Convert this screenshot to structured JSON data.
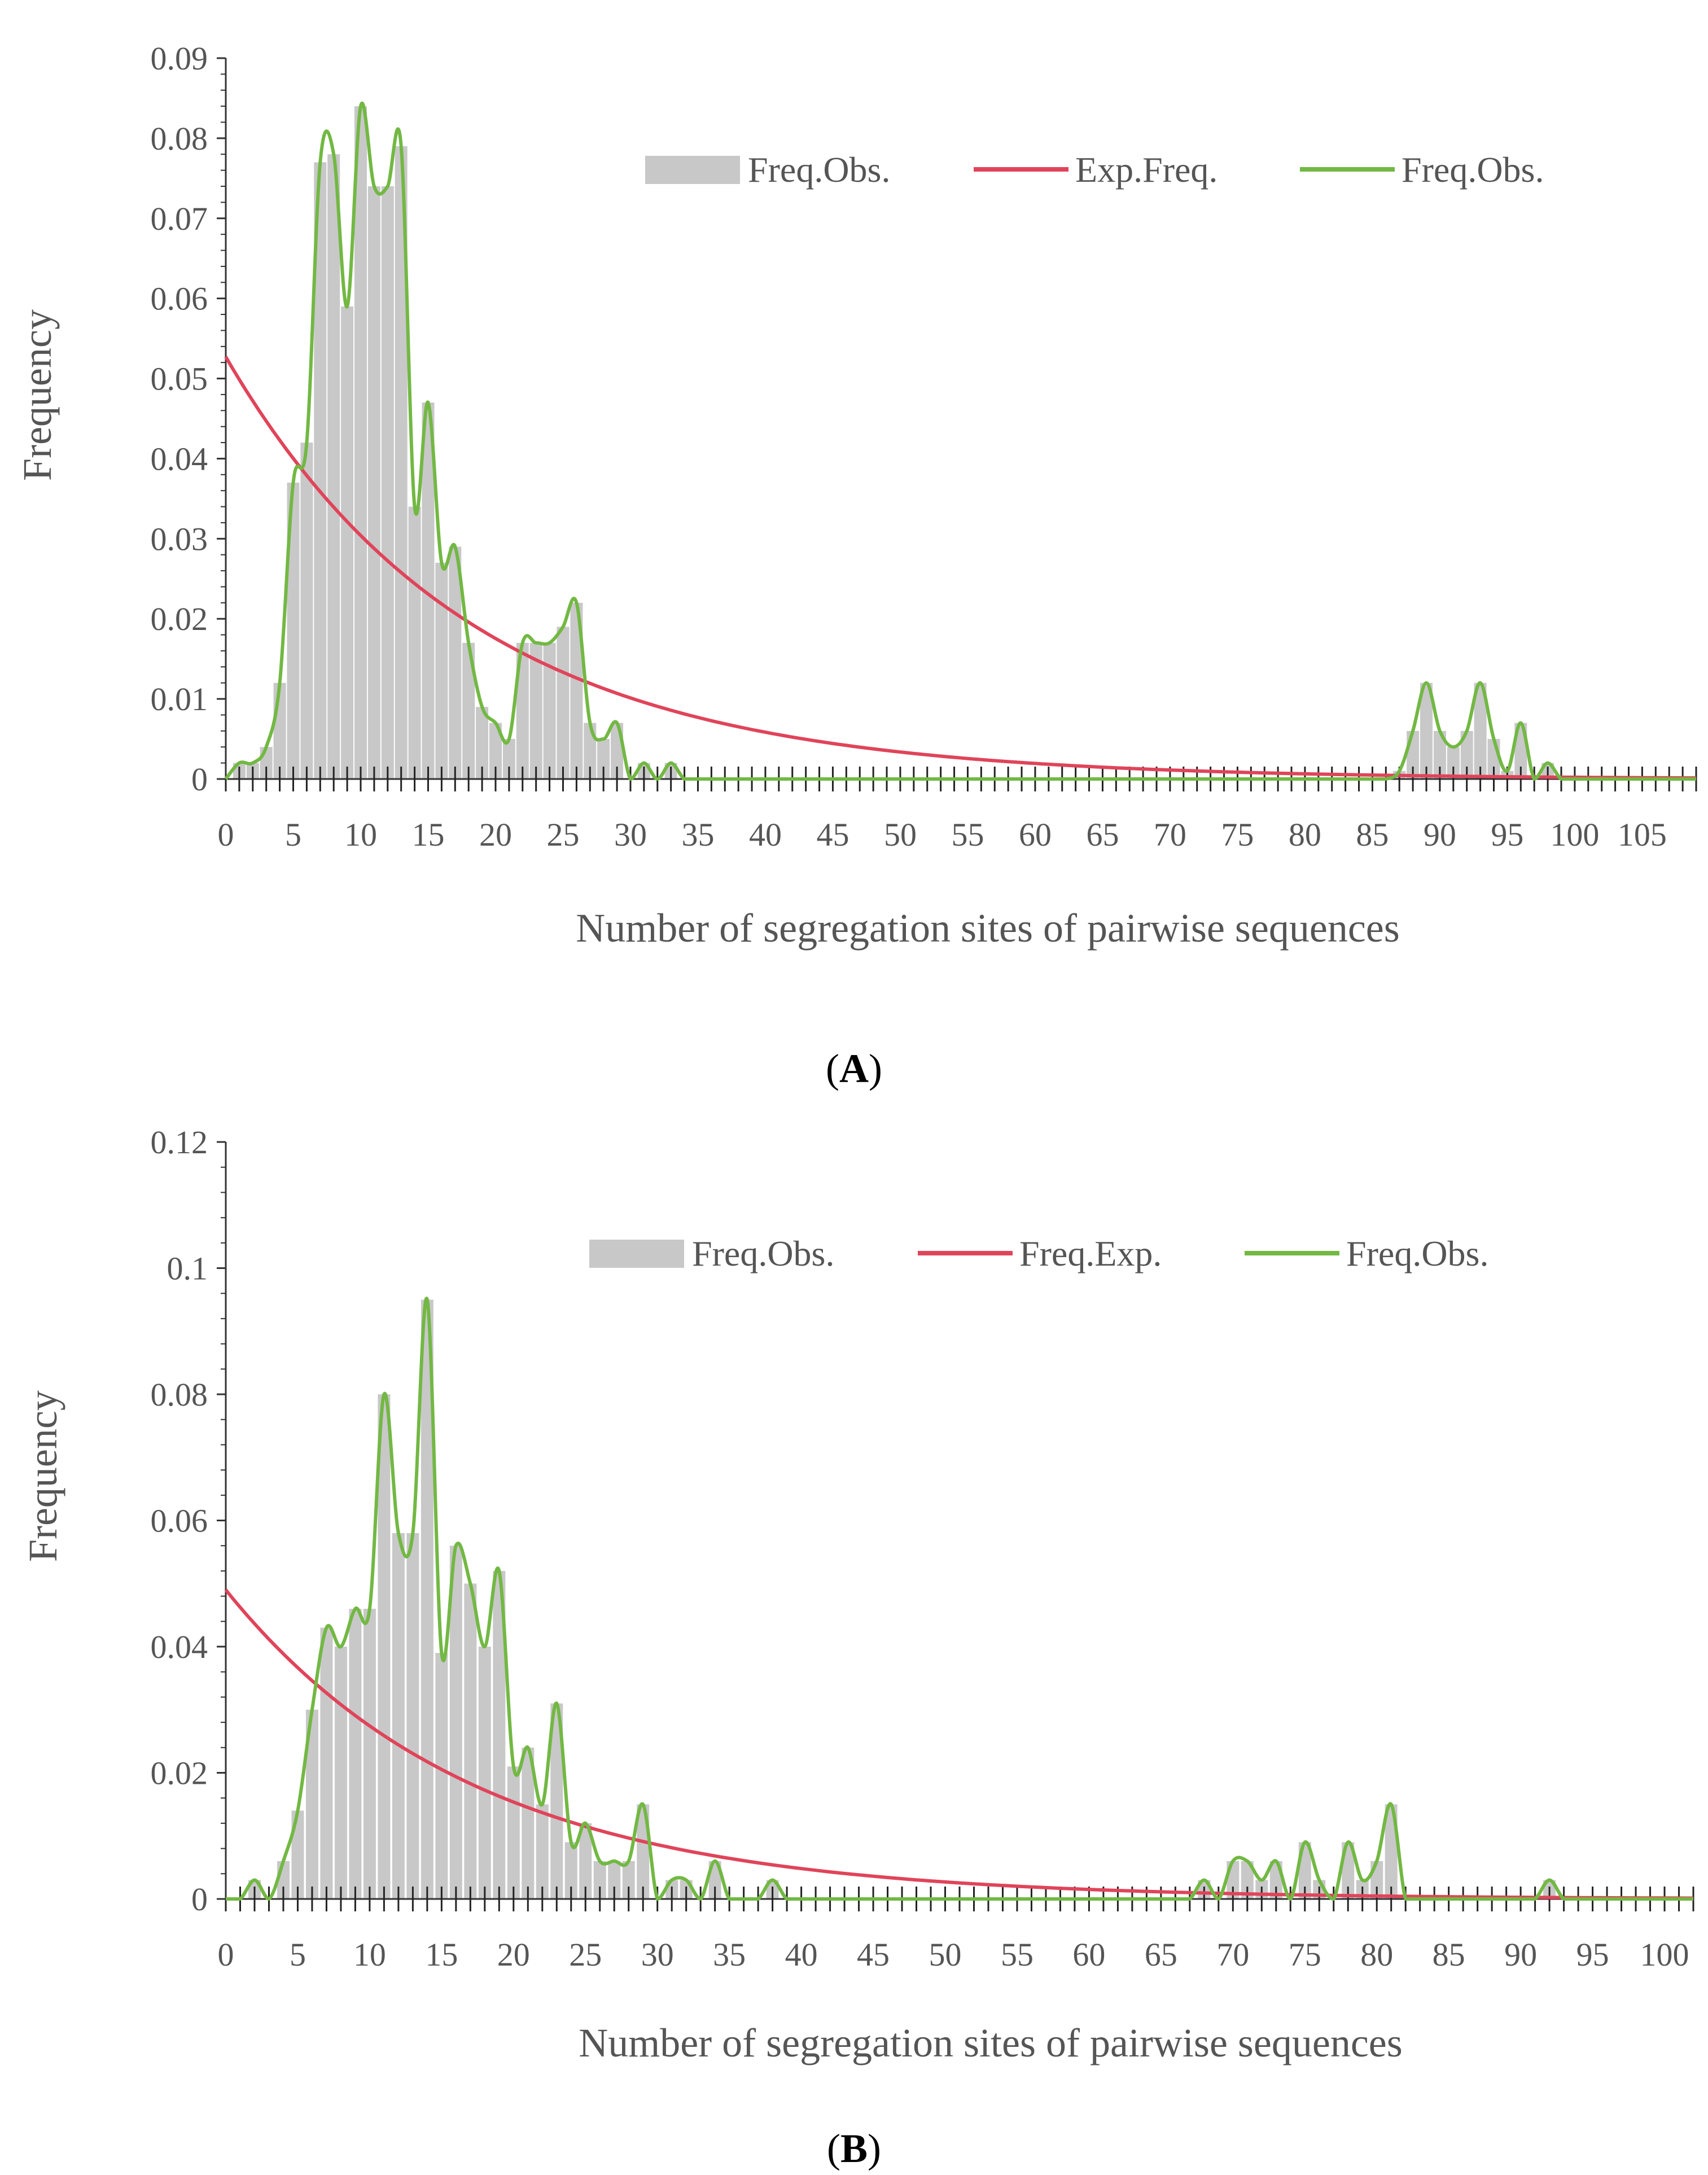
{
  "chart_data": [
    {
      "type": "bar",
      "panel_label": {
        "open": "(",
        "letter": "A",
        "close": ")"
      },
      "title": "",
      "xlabel": "Number of segregation sites of pairwise sequences",
      "ylabel": "Frequency",
      "xlim": [
        0,
        109
      ],
      "ylim": [
        0,
        0.09
      ],
      "xticks": [
        0,
        5,
        10,
        15,
        20,
        25,
        30,
        35,
        40,
        45,
        50,
        55,
        60,
        65,
        70,
        75,
        80,
        85,
        90,
        95,
        100,
        105
      ],
      "yticks": [
        0,
        0.01,
        0.02,
        0.03,
        0.04,
        0.05,
        0.06,
        0.07,
        0.08,
        0.09
      ],
      "ytick_labels": [
        "0",
        "0.01",
        "0.02",
        "0.03",
        "0.04",
        "0.05",
        "0.06",
        "0.07",
        "0.08",
        "0.09"
      ],
      "legend": [
        "Freq.Obs.",
        "Exp.Freq.",
        "Freq.Obs."
      ],
      "legend_position": "top-right",
      "expected": {
        "name": "Exp.Freq.",
        "a": 0.0527,
        "k": 0.055
      },
      "observed": {
        "name": "Freq.Obs.",
        "x": [
          0,
          1,
          2,
          3,
          4,
          5,
          6,
          7,
          8,
          9,
          10,
          11,
          12,
          13,
          14,
          15,
          16,
          17,
          18,
          19,
          20,
          21,
          22,
          23,
          24,
          25,
          26,
          27,
          28,
          29,
          30,
          31,
          32,
          33,
          34,
          87,
          88,
          89,
          90,
          91,
          92,
          93,
          94,
          95,
          96,
          97,
          98,
          99
        ],
        "values": [
          0,
          0.002,
          0.002,
          0.004,
          0.012,
          0.037,
          0.042,
          0.077,
          0.078,
          0.059,
          0.084,
          0.074,
          0.074,
          0.079,
          0.034,
          0.047,
          0.027,
          0.029,
          0.017,
          0.009,
          0.007,
          0.005,
          0.017,
          0.017,
          0.017,
          0.019,
          0.022,
          0.007,
          0.005,
          0.007,
          0,
          0.002,
          0,
          0.002,
          0,
          0.001,
          0.006,
          0.012,
          0.006,
          0.004,
          0.006,
          0.012,
          0.005,
          0.001,
          0.007,
          0,
          0.002,
          0
        ]
      }
    },
    {
      "type": "bar",
      "panel_label": {
        "open": "(",
        "letter": "B",
        "close": ")"
      },
      "title": "",
      "xlabel": "Number of segregation sites of pairwise sequences",
      "ylabel": "Frequency",
      "xlim": [
        0,
        102
      ],
      "ylim": [
        0,
        0.12
      ],
      "xticks": [
        0,
        5,
        10,
        15,
        20,
        25,
        30,
        35,
        40,
        45,
        50,
        55,
        60,
        65,
        70,
        75,
        80,
        85,
        90,
        95,
        100
      ],
      "yticks": [
        0,
        0.02,
        0.04,
        0.06,
        0.08,
        0.1,
        0.12
      ],
      "ytick_labels": [
        "0",
        "0.02",
        "0.04",
        "0.06",
        "0.08",
        "0.1",
        "0.12"
      ],
      "legend": [
        "Freq.Obs.",
        "Freq.Exp.",
        "Freq.Obs."
      ],
      "legend_position": "top-right",
      "expected": {
        "name": "Freq.Exp.",
        "a": 0.049,
        "k": 0.058
      },
      "observed": {
        "name": "Freq.Obs.",
        "x": [
          0,
          1,
          2,
          3,
          4,
          5,
          6,
          7,
          8,
          9,
          10,
          11,
          12,
          13,
          14,
          15,
          16,
          17,
          18,
          19,
          20,
          21,
          22,
          23,
          24,
          25,
          26,
          27,
          28,
          29,
          30,
          31,
          32,
          33,
          34,
          35,
          36,
          37,
          38,
          39,
          67,
          68,
          69,
          70,
          71,
          72,
          73,
          74,
          75,
          76,
          77,
          78,
          79,
          80,
          81,
          82,
          90,
          91,
          92,
          93
        ],
        "values": [
          0,
          0,
          0.003,
          0,
          0.006,
          0.014,
          0.03,
          0.043,
          0.04,
          0.046,
          0.046,
          0.08,
          0.058,
          0.058,
          0.095,
          0.039,
          0.056,
          0.05,
          0.04,
          0.052,
          0.021,
          0.024,
          0.015,
          0.031,
          0.009,
          0.012,
          0.006,
          0.006,
          0.006,
          0.015,
          0,
          0.003,
          0.003,
          0,
          0.006,
          0,
          0,
          0,
          0.003,
          0,
          0,
          0.003,
          0,
          0.006,
          0.006,
          0.003,
          0.006,
          0,
          0.009,
          0.003,
          0,
          0.009,
          0.003,
          0.006,
          0.015,
          0,
          0,
          0,
          0.003,
          0
        ]
      }
    }
  ]
}
